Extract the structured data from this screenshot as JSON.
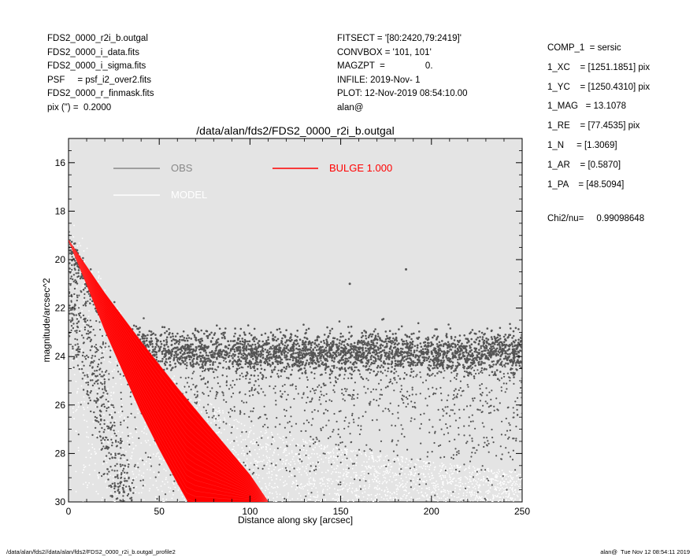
{
  "header_left": [
    "FDS2_0000_r2i_b.outgal",
    "FDS2_0000_i_data.fits",
    "FDS2_0000_i_sigma.fits",
    "PSF     = psf_i2_over2.fits",
    "FDS2_0000_r_finmask.fits",
    "pix (\") =  0.2000"
  ],
  "header_middle": [
    "FITSECT = '[80:2420,79:2419]'",
    "CONVBOX = '101, 101'",
    "MAGZPT  =                0.",
    "INFILE: 2019-Nov- 1",
    "PLOT: 12-Nov-2019 08:54:10.00",
    "alan@"
  ],
  "header_right": [
    "COMP_1  = sersic",
    "1_XC    = [1251.1851] pix",
    "1_YC    = [1250.4310] pix",
    "1_MAG   = 13.1078",
    "1_RE    = [77.4535] pix",
    "1_N     = [1.3069]",
    "1_AR    = [0.5870]",
    "1_PA    = [48.5094]"
  ],
  "chi2": {
    "label": "Chi2/nu=",
    "value": "0.99098648"
  },
  "footer": {
    "left": "/data/alan/fds2//data/alan/fds2/FDS2_0000_r2i_b.outgal_profile2",
    "right": "alan@  Tue Nov 12 08:54:11 2019"
  },
  "colors": {
    "plot_bg": "#e4e4e4",
    "obs": "#555555",
    "obs_legend": "#888888",
    "model": "#ffffff",
    "bulge": "#ff0000"
  },
  "chart_data": {
    "type": "scatter",
    "title": "/data/alan/fds2/FDS2_0000_r2i_b.outgal",
    "xlabel": "Distance along sky [arcsec]",
    "ylabel": "magnitude/arcsec^2",
    "xlim": [
      0,
      250
    ],
    "ylim": [
      30,
      15
    ],
    "y_inverted": true,
    "xticks": [
      0,
      50,
      100,
      150,
      200,
      250
    ],
    "yticks": [
      16,
      18,
      20,
      22,
      24,
      26,
      28,
      30
    ],
    "legend": [
      {
        "name": "OBS",
        "color": "#888888"
      },
      {
        "name": "MODEL",
        "color": "#ffffff"
      },
      {
        "name": "BULGE  1.000",
        "color": "#ff0000"
      }
    ],
    "series": [
      {
        "name": "OBS",
        "description_points": "scattered pixel surface-brightness values",
        "profile_x": [
          0,
          5,
          10,
          15,
          20,
          25,
          30,
          40,
          50,
          75,
          100,
          150,
          200,
          250
        ],
        "profile_y": [
          19.2,
          20.0,
          20.8,
          21.6,
          22.3,
          22.8,
          23.2,
          23.6,
          23.75,
          23.8,
          23.8,
          23.8,
          23.8,
          23.8
        ],
        "outliers": [
          [
            155,
            21.0
          ],
          [
            186,
            20.4
          ]
        ]
      },
      {
        "name": "MODEL",
        "profile_x": [
          0,
          25,
          50,
          75,
          100,
          150,
          200,
          250
        ],
        "profile_y": [
          19.1,
          23.0,
          25.5,
          27.0,
          28.0,
          29.0,
          29.5,
          30.0
        ]
      },
      {
        "name": "BULGE  1.000",
        "band_inner_x": [
          0,
          10,
          20,
          30,
          40,
          50,
          60,
          66
        ],
        "band_inner_y": [
          19.2,
          21.0,
          22.9,
          24.6,
          26.3,
          27.8,
          29.2,
          30.0
        ],
        "band_outer_x": [
          0,
          20,
          40,
          60,
          80,
          100,
          110
        ],
        "band_outer_y": [
          19.2,
          21.4,
          23.4,
          25.3,
          27.1,
          28.9,
          30.0
        ]
      }
    ]
  }
}
